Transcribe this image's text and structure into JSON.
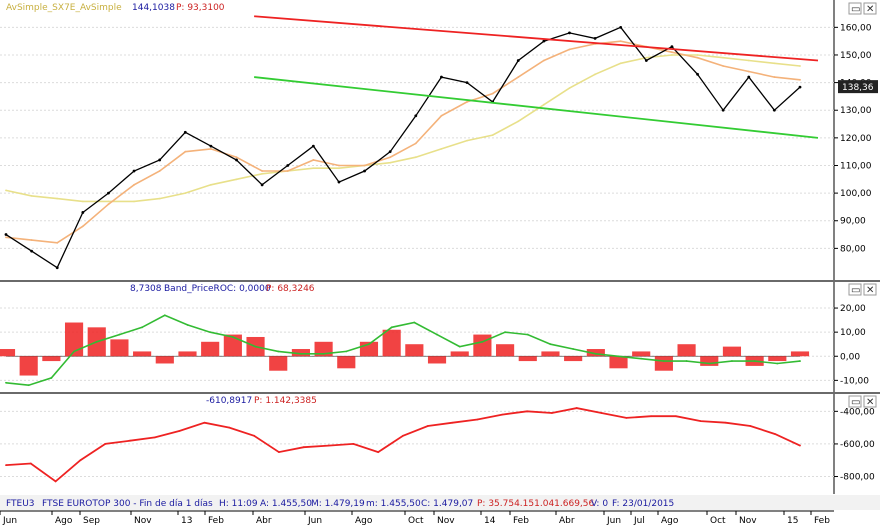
{
  "colors": {
    "price": "#000000",
    "ma_fast": "#f4b27a",
    "ma_slow": "#e8e08a",
    "trend_upper": "#ee2222",
    "trend_lower": "#33cc33",
    "roc_bars": "#ee2222",
    "roc_band": "#33bb33",
    "bottom_line": "#ee2222",
    "grid": "#dcdcdc",
    "axis": "#000000",
    "price_tag_bg": "#222222",
    "price_tag_fg": "#ffffff"
  },
  "top_panel": {
    "header": {
      "indicator": "AvSimple_SX7E_AvSimple",
      "value": "144,1038",
      "p_label": "P: 93,3100"
    },
    "last_price_tag": "138,36",
    "controls": {
      "expand_icon": "expand-icon",
      "close_icon": "close-icon"
    }
  },
  "mid_panel": {
    "header": {
      "value": "8,7308",
      "indicator": "Band_PriceROC: 0,0000",
      "p_label": "P: 68,3246"
    },
    "controls": {
      "expand_icon": "expand-icon",
      "close_icon": "close-icon"
    }
  },
  "bottom_panel": {
    "header": {
      "value": "-610,8917",
      "p_label": "P: 1.142,3385"
    },
    "controls": {
      "expand_icon": "expand-icon",
      "close_icon": "close-icon"
    }
  },
  "status_bar": {
    "ticker": "FTEU3",
    "description": "FTSE EUROTOP 300 - Fin de día 1 días",
    "high": "H: 11:09",
    "open": "A: 1.455,50",
    "max": "M: 1.479,19",
    "min": "m: 1.455,50",
    "close": "C: 1.479,07",
    "p_volume": "P: 35.754.151.041.669,56",
    "volume": "V: 0",
    "date": "F: 23/01/2015"
  },
  "chart_data": [
    {
      "type": "line",
      "panel": "price",
      "x_tick_labels": [
        "Jun",
        "Ago",
        "Sep",
        "Nov",
        "13",
        "Feb",
        "Abr",
        "Jun",
        "Ago",
        "Oct",
        "Nov",
        "14",
        "Feb",
        "Abr",
        "Jun",
        "Jul",
        "Ago",
        "Oct",
        "Nov",
        "15",
        "Feb"
      ],
      "y_ticks": [
        80,
        90,
        100,
        110,
        120,
        130,
        140,
        150,
        160
      ],
      "y_tick_labels": [
        "80,00",
        "90,00",
        "100,00",
        "110,00",
        "120,00",
        "130,00",
        "140,00",
        "150,00",
        "160,00"
      ],
      "ylim": [
        70,
        167
      ],
      "x": [
        "Jun",
        "Jul",
        "Ago",
        "Sep",
        "Oct",
        "Nov",
        "Dic",
        "13",
        "Feb",
        "Mar",
        "Abr",
        "May",
        "Jun",
        "Jul",
        "Ago",
        "Sep",
        "Oct",
        "Nov",
        "Dic",
        "14",
        "Feb",
        "Mar",
        "Abr",
        "May",
        "Jun",
        "Jul",
        "Ago",
        "Sep",
        "Oct",
        "Nov",
        "Dic",
        "15"
      ],
      "series": [
        {
          "role": "price",
          "values": [
            85,
            79,
            73,
            93,
            100,
            108,
            112,
            122,
            117,
            112,
            103,
            110,
            117,
            104,
            108,
            115,
            128,
            142,
            140,
            133,
            148,
            155,
            158,
            156,
            160,
            148,
            153,
            143,
            130,
            142,
            130,
            138.36
          ]
        },
        {
          "role": "moving-average-fast",
          "values": [
            84,
            83,
            82,
            88,
            96,
            103,
            108,
            115,
            116,
            113,
            108,
            108,
            112,
            110,
            110,
            113,
            118,
            128,
            133,
            136,
            142,
            148,
            152,
            154,
            155,
            153,
            151,
            149,
            146,
            144,
            142,
            141
          ]
        },
        {
          "role": "moving-average-slow",
          "values": [
            101,
            99,
            98,
            97,
            97,
            97,
            98,
            100,
            103,
            105,
            107,
            108,
            109,
            109,
            110,
            111,
            113,
            116,
            119,
            121,
            126,
            132,
            138,
            143,
            147,
            149,
            150,
            150,
            149,
            148,
            147,
            146
          ]
        }
      ],
      "trendlines": [
        {
          "role": "upper",
          "from": [
            "Abr",
            164
          ],
          "to": [
            "Feb",
            148
          ]
        },
        {
          "role": "lower",
          "from": [
            "Abr",
            142
          ],
          "to": [
            "Feb",
            120
          ]
        }
      ],
      "last_value": 138.36
    },
    {
      "type": "bar",
      "panel": "price-roc",
      "y_ticks": [
        -10,
        0,
        10,
        20
      ],
      "y_tick_labels": [
        "-10,00",
        "0,00",
        "10,00",
        "20,00"
      ],
      "ylim": [
        -14,
        25
      ],
      "values": [
        3,
        -8,
        -2,
        14,
        12,
        7,
        2,
        -3,
        2,
        6,
        9,
        8,
        -6,
        3,
        6,
        -5,
        6,
        11,
        5,
        -3,
        2,
        9,
        5,
        -2,
        2,
        -2,
        3,
        -5,
        2,
        -6,
        5,
        -4,
        4,
        -4,
        -2,
        2
      ],
      "band_values": [
        -11,
        -12,
        -9,
        2,
        6,
        9,
        12,
        17,
        13,
        10,
        8,
        4,
        2,
        1,
        1,
        2,
        5,
        12,
        14,
        9,
        4,
        6,
        10,
        9,
        5,
        3,
        1,
        0,
        -1,
        -2,
        -2,
        -3,
        -2,
        -2,
        -3,
        -2
      ]
    },
    {
      "type": "line",
      "panel": "bottom",
      "y_ticks": [
        -800,
        -600,
        -400
      ],
      "y_tick_labels": [
        "-800,00",
        "-600,00",
        "-400,00"
      ],
      "ylim": [
        -895,
        -355
      ],
      "values": [
        -730,
        -720,
        -830,
        -700,
        -600,
        -580,
        -560,
        -520,
        -470,
        -500,
        -550,
        -650,
        -620,
        -610,
        -600,
        -650,
        -550,
        -490,
        -470,
        -450,
        -420,
        -400,
        -410,
        -380,
        -410,
        -440,
        -430,
        -430,
        -460,
        -470,
        -490,
        -540,
        -610
      ]
    }
  ]
}
